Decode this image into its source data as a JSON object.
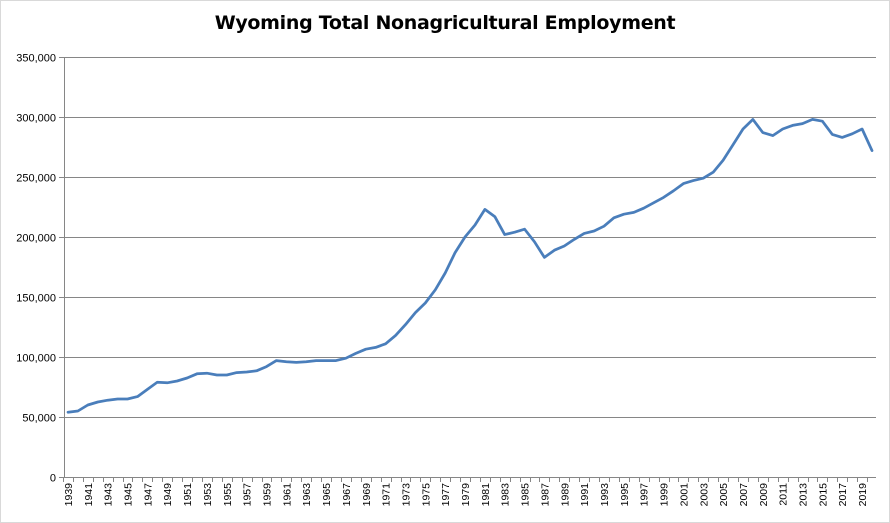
{
  "chart_data": {
    "type": "line",
    "title": "Wyoming Total Nonagricultural Employment",
    "xlabel": "",
    "ylabel": "",
    "ylim": [
      0,
      350000
    ],
    "y_ticks": [
      "0",
      "50,000",
      "100,000",
      "150,000",
      "200,000",
      "250,000",
      "300,000",
      "350,000"
    ],
    "x_tick_labels": [
      "1939",
      "1941",
      "1943",
      "1945",
      "1947",
      "1949",
      "1951",
      "1953",
      "1955",
      "1957",
      "1959",
      "1961",
      "1963",
      "1965",
      "1967",
      "1969",
      "1971",
      "1973",
      "1975",
      "1977",
      "1979",
      "1981",
      "1983",
      "1985",
      "1987",
      "1989",
      "1991",
      "1993",
      "1995",
      "1997",
      "1999",
      "2001",
      "2003",
      "2005",
      "2007",
      "2009",
      "2011",
      "2013",
      "2015",
      "2017",
      "2019"
    ],
    "grid": true,
    "legend": "none",
    "line_color": "#4a7ebb",
    "series": [
      {
        "x": [
          1939,
          1940,
          1941,
          1942,
          1943,
          1944,
          1945,
          1946,
          1947,
          1948,
          1949,
          1950,
          1951,
          1952,
          1953,
          1954,
          1955,
          1956,
          1957,
          1958,
          1959,
          1960,
          1961,
          1962,
          1963,
          1964,
          1965,
          1966,
          1967,
          1968,
          1969,
          1970,
          1971,
          1972,
          1973,
          1974,
          1975,
          1976,
          1977,
          1978,
          1979,
          1980,
          1981,
          1982,
          1983,
          1984,
          1985,
          1986,
          1987,
          1988,
          1989,
          1990,
          1991,
          1992,
          1993,
          1994,
          1995,
          1996,
          1997,
          1998,
          1999,
          2000,
          2001,
          2002,
          2003,
          2004,
          2005,
          2006,
          2007,
          2008,
          2009,
          2010,
          2011,
          2012,
          2013,
          2014,
          2015,
          2016,
          2017,
          2018,
          2019,
          2020
        ],
        "values": [
          54000,
          55000,
          60000,
          62500,
          64000,
          65000,
          65000,
          67000,
          73000,
          79000,
          78500,
          80000,
          82500,
          86000,
          86500,
          85000,
          85000,
          87000,
          87500,
          88500,
          92000,
          97000,
          96000,
          95500,
          96000,
          97000,
          97000,
          97000,
          99000,
          103000,
          106500,
          108000,
          111000,
          118000,
          127000,
          137000,
          145000,
          156000,
          170000,
          187000,
          200000,
          210000,
          223000,
          217000,
          202000,
          204000,
          206500,
          196000,
          183000,
          189000,
          192500,
          198000,
          203000,
          205000,
          209000,
          216000,
          219000,
          220500,
          224000,
          228500,
          233000,
          238500,
          244500,
          247000,
          249000,
          254000,
          264000,
          277000,
          290000,
          298000,
          287000,
          284500,
          290000,
          293000,
          294500,
          298000,
          296500,
          285500,
          283000,
          286000,
          290000,
          272000
        ]
      }
    ]
  }
}
